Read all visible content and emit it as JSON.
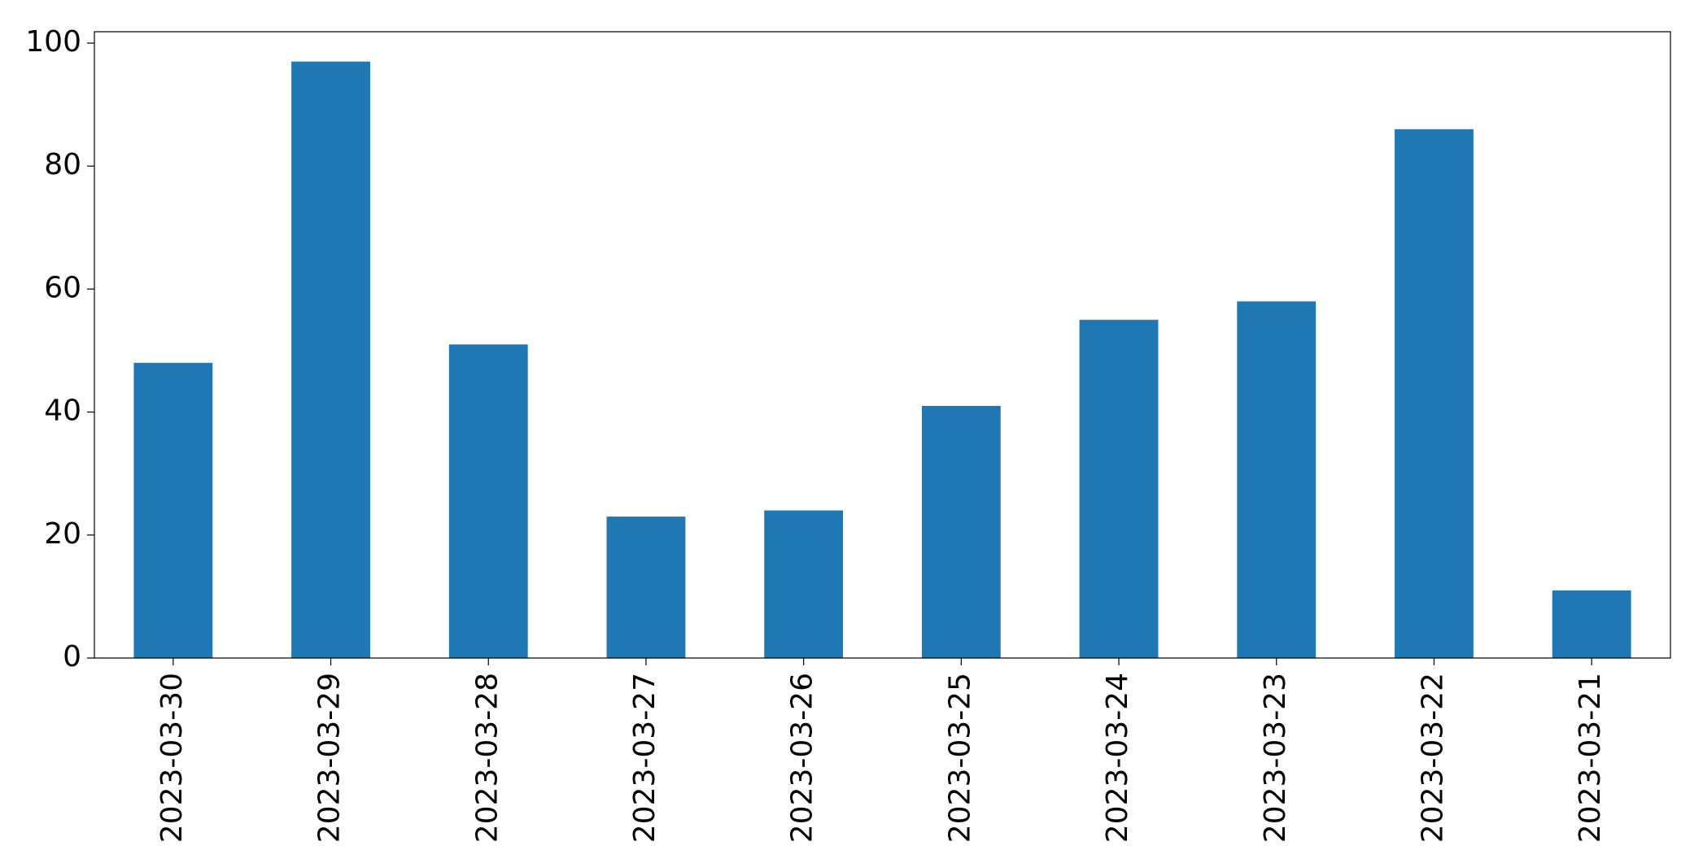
{
  "chart_data": {
    "type": "bar",
    "categories": [
      "2023-03-30",
      "2023-03-29",
      "2023-03-28",
      "2023-03-27",
      "2023-03-26",
      "2023-03-25",
      "2023-03-24",
      "2023-03-23",
      "2023-03-22",
      "2023-03-21"
    ],
    "values": [
      48,
      97,
      51,
      23,
      24,
      41,
      55,
      58,
      86,
      11
    ],
    "color": "#1f77b4",
    "ylim": [
      0,
      101.85
    ],
    "yticks": [
      0,
      20,
      40,
      60,
      80,
      100
    ],
    "grid": false
  }
}
